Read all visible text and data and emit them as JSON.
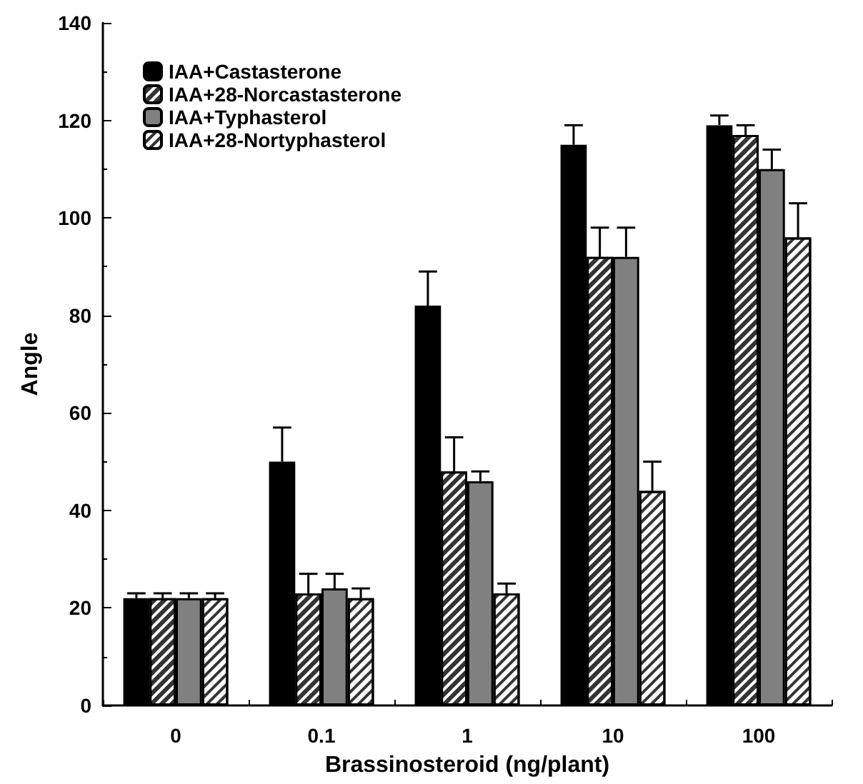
{
  "chart_data": {
    "type": "bar",
    "xlabel": "Brassinosteroid (ng/plant)",
    "ylabel": "Angle",
    "categories": [
      "0",
      "0.1",
      "1",
      "10",
      "100"
    ],
    "series": [
      {
        "name": "IAA+Castasterone",
        "color": "#000000",
        "values": [
          22,
          50,
          82,
          115,
          119
        ],
        "errors": [
          1,
          7,
          7,
          4,
          2
        ]
      },
      {
        "name": "IAA+28-Norcastasterone",
        "color": "#333333",
        "values": [
          22,
          23,
          48,
          92,
          117
        ],
        "errors": [
          1,
          4,
          7,
          6,
          2
        ]
      },
      {
        "name": "IAA+Typhasterol",
        "color": "#808080",
        "values": [
          22,
          24,
          46,
          92,
          110
        ],
        "errors": [
          1,
          3,
          2,
          6,
          4
        ]
      },
      {
        "name": "IAA+28-Nortyphasterol",
        "color": "#ffffff",
        "values": [
          22,
          22,
          23,
          44,
          96
        ],
        "errors": [
          1,
          2,
          2,
          6,
          7
        ]
      }
    ],
    "ylim": [
      0,
      140
    ],
    "yticks": [
      0,
      20,
      40,
      60,
      80,
      100,
      120,
      140
    ],
    "grid": false,
    "legend": "top left"
  }
}
